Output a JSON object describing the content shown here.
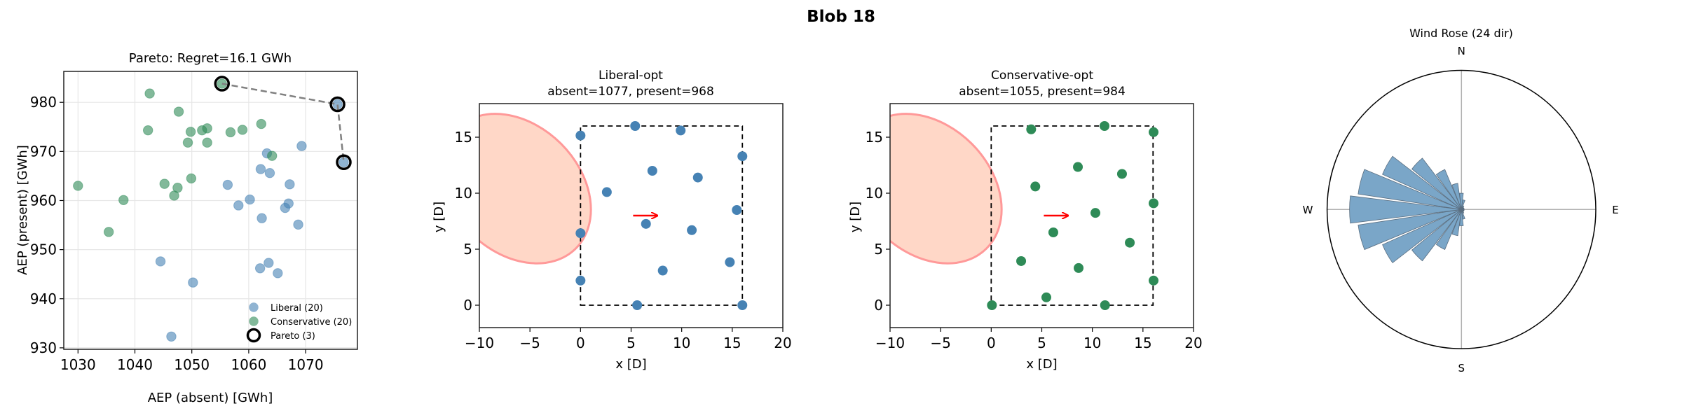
{
  "suptitle": "Blob 18",
  "chart_data": [
    {
      "type": "scatter",
      "title": "Pareto: Regret=16.1 GWh",
      "xlabel": "AEP (absent) [GWh]",
      "ylabel": "AEP (present) [GWh]",
      "xlim": [
        1027.5,
        1079.1
      ],
      "ylim": [
        929.7,
        986.3
      ],
      "xticks": [
        1030,
        1040,
        1050,
        1060,
        1070
      ],
      "yticks": [
        930,
        940,
        950,
        960,
        970,
        980
      ],
      "grid": true,
      "legend_placement": "lower-right",
      "series": [
        {
          "name": "Liberal (20)",
          "color": "#4682b4",
          "points": [
            [
              1075.6,
              979.6
            ],
            [
              1076.7,
              967.8
            ],
            [
              1069.3,
              971.1
            ],
            [
              1063.2,
              969.6
            ],
            [
              1062.1,
              966.4
            ],
            [
              1063.7,
              965.6
            ],
            [
              1056.3,
              963.2
            ],
            [
              1067.2,
              963.3
            ],
            [
              1060.2,
              960.2
            ],
            [
              1058.2,
              959.0
            ],
            [
              1067.0,
              959.4
            ],
            [
              1066.4,
              958.5
            ],
            [
              1062.3,
              956.4
            ],
            [
              1068.7,
              955.1
            ],
            [
              1044.5,
              947.6
            ],
            [
              1063.5,
              947.3
            ],
            [
              1062.0,
              946.2
            ],
            [
              1065.1,
              945.2
            ],
            [
              1050.2,
              943.3
            ],
            [
              1046.4,
              932.3
            ]
          ]
        },
        {
          "name": "Conservative (20)",
          "color": "#2e8b57",
          "points": [
            [
              1055.3,
              983.8
            ],
            [
              1042.6,
              981.8
            ],
            [
              1047.7,
              978.1
            ],
            [
              1042.3,
              974.3
            ],
            [
              1049.8,
              974.0
            ],
            [
              1051.8,
              974.3
            ],
            [
              1052.7,
              974.7
            ],
            [
              1056.8,
              973.9
            ],
            [
              1058.9,
              974.4
            ],
            [
              1062.2,
              975.6
            ],
            [
              1049.3,
              971.8
            ],
            [
              1052.7,
              971.8
            ],
            [
              1064.1,
              969.1
            ],
            [
              1049.9,
              964.5
            ],
            [
              1045.2,
              963.4
            ],
            [
              1047.5,
              962.6
            ],
            [
              1046.9,
              961.0
            ],
            [
              1030.0,
              963.0
            ],
            [
              1038.0,
              960.1
            ],
            [
              1035.4,
              953.6
            ]
          ]
        },
        {
          "name": "Pareto (3)",
          "color": "#000000",
          "points": [
            [
              1055.3,
              983.8
            ],
            [
              1075.6,
              979.6
            ],
            [
              1076.7,
              967.8
            ]
          ]
        }
      ]
    },
    {
      "type": "scatter",
      "title": "Liberal-opt",
      "subtitle": "absent=1077, present=968",
      "xlabel": "x [D]",
      "ylabel": "y [D]",
      "xlim": [
        -10,
        20
      ],
      "ylim": [
        -2,
        18
      ],
      "xticks": [
        -10,
        -5,
        0,
        5,
        10,
        15,
        20
      ],
      "xtick_labels": [
        "−10",
        "−5",
        "0",
        "5",
        "10",
        "15",
        "20"
      ],
      "yticks": [
        0,
        5,
        10,
        15
      ],
      "boundary": [
        [
          0,
          0
        ],
        [
          16,
          0
        ],
        [
          16,
          16
        ],
        [
          0,
          16
        ]
      ],
      "wind_arrow": {
        "from": [
          5.2,
          8
        ],
        "to": [
          7.6,
          8
        ],
        "color": "#ff0000"
      },
      "blob_color": "#ff9999",
      "turbine_color": "#4682b4",
      "turbines": [
        [
          0,
          15.15
        ],
        [
          5.4,
          16.0
        ],
        [
          9.9,
          15.6
        ],
        [
          16.0,
          13.3
        ],
        [
          7.1,
          12.0
        ],
        [
          11.6,
          11.4
        ],
        [
          2.6,
          10.1
        ],
        [
          15.45,
          8.5
        ],
        [
          6.47,
          7.26
        ],
        [
          11.0,
          6.7
        ],
        [
          0,
          6.43
        ],
        [
          14.76,
          3.84
        ],
        [
          8.13,
          3.09
        ],
        [
          0,
          2.2
        ],
        [
          5.6,
          0
        ],
        [
          16,
          0
        ]
      ]
    },
    {
      "type": "scatter",
      "title": "Conservative-opt",
      "subtitle": "absent=1055, present=984",
      "xlabel": "x [D]",
      "ylabel": "y [D]",
      "xlim": [
        -10,
        20
      ],
      "ylim": [
        -2,
        18
      ],
      "xticks": [
        -10,
        -5,
        0,
        5,
        10,
        15,
        20
      ],
      "xtick_labels": [
        "−10",
        "−5",
        "0",
        "5",
        "10",
        "15",
        "20"
      ],
      "yticks": [
        0,
        5,
        10,
        15
      ],
      "boundary": [
        [
          0,
          0
        ],
        [
          16,
          0
        ],
        [
          16,
          16
        ],
        [
          0,
          16
        ]
      ],
      "wind_arrow": {
        "from": [
          5.2,
          8
        ],
        "to": [
          7.6,
          8
        ],
        "color": "#ff0000"
      },
      "blob_color": "#ff9999",
      "turbine_color": "#2e8b57",
      "turbines": [
        [
          3.95,
          15.7
        ],
        [
          11.2,
          16.0
        ],
        [
          16.05,
          15.45
        ],
        [
          8.57,
          12.34
        ],
        [
          12.93,
          11.72
        ],
        [
          4.36,
          10.6
        ],
        [
          16.05,
          9.1
        ],
        [
          10.3,
          8.24
        ],
        [
          6.14,
          6.5
        ],
        [
          13.7,
          5.58
        ],
        [
          2.96,
          3.94
        ],
        [
          8.64,
          3.32
        ],
        [
          16.05,
          2.2
        ],
        [
          5.45,
          0.7
        ],
        [
          0.07,
          0
        ],
        [
          11.25,
          0
        ]
      ]
    },
    {
      "type": "bar",
      "polar": true,
      "title": "Wind Rose (24 dir)",
      "direction_labels": {
        "N": "N",
        "E": "E",
        "S": "S",
        "W": "W"
      },
      "directions_deg": [
        0,
        15,
        30,
        45,
        60,
        75,
        90,
        105,
        120,
        135,
        150,
        165,
        180,
        195,
        210,
        225,
        240,
        255,
        270,
        285,
        300,
        315,
        330,
        345
      ],
      "values": [
        0.117,
        0.07,
        0.03,
        0.02,
        0.02,
        0.02,
        0.02,
        0.02,
        0.02,
        0.02,
        0.03,
        0.07,
        0.117,
        0.19,
        0.313,
        0.47,
        0.64,
        0.777,
        0.833,
        0.777,
        0.64,
        0.47,
        0.313,
        0.19
      ],
      "rlim": [
        0,
        1
      ],
      "color": "#7aa6c8"
    }
  ]
}
